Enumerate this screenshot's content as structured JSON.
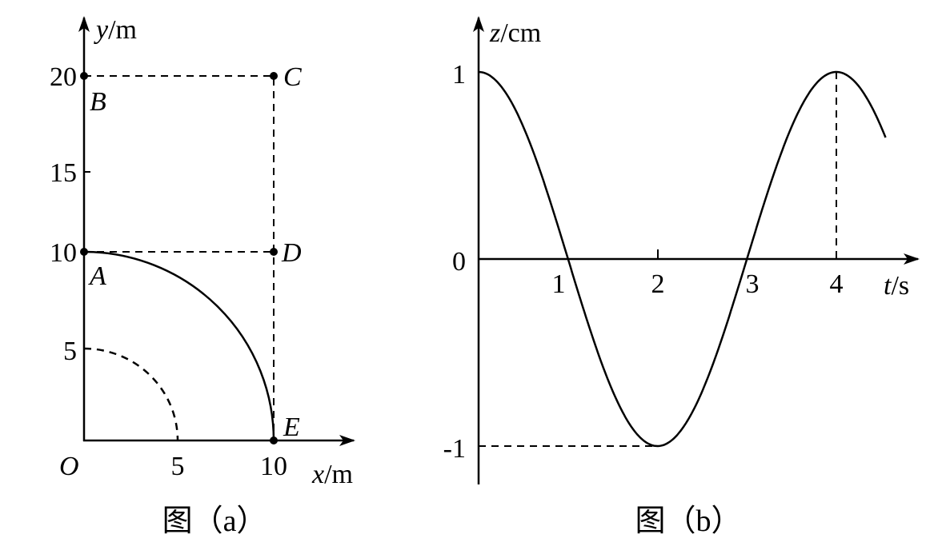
{
  "figure_a": {
    "caption": "图（a）",
    "x_axis": {
      "var": "x",
      "unit": "/m",
      "ticks": [
        "5",
        "10"
      ]
    },
    "y_axis": {
      "var": "y",
      "unit": "/m",
      "ticks": [
        "5",
        "10",
        "15",
        "20"
      ]
    },
    "origin": "O",
    "points": {
      "A": "A",
      "B": "B",
      "C": "C",
      "D": "D",
      "E": "E"
    }
  },
  "figure_b": {
    "caption": "图（b）",
    "x_axis": {
      "var": "t",
      "unit": "/s",
      "ticks": [
        "1",
        "2",
        "3",
        "4"
      ]
    },
    "y_axis": {
      "var": "z",
      "unit": "/cm",
      "ticks": [
        "1",
        "0",
        "-1"
      ]
    },
    "curve": {
      "function": "z = cos(πt/2)",
      "amplitude_cm": 1,
      "period_s": 4,
      "t_range": [
        0,
        4.55
      ]
    }
  },
  "colors": {
    "ink": "#000000",
    "background": "#ffffff"
  }
}
